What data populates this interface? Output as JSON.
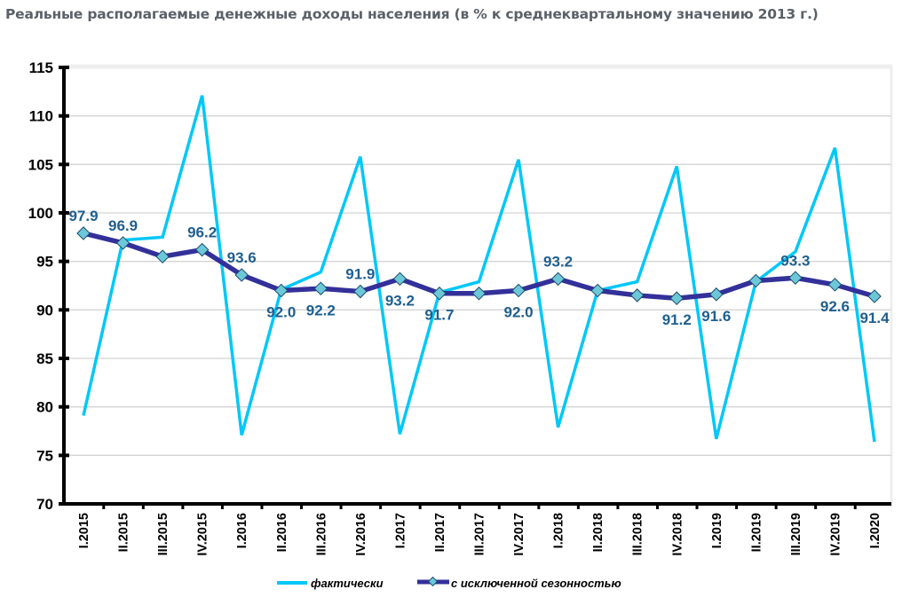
{
  "title": "Реальные располагаемые денежные доходы населения (в % к среднеквартальному значению 2013 г.)",
  "colors": {
    "actual": "#00c8f8",
    "adjusted": "#33309a",
    "marker_fill": "#6cc8d8",
    "marker_stroke": "#1c4a6a",
    "label": "#1f5f8f",
    "grid": "#d4d4d4",
    "title": "#5b6168"
  },
  "chart_data": {
    "type": "line",
    "title": "Реальные располагаемые денежные доходы населения (в % к среднеквартальному значению 2013 г.)",
    "xlabel": "",
    "ylabel": "",
    "ylim": [
      70,
      115
    ],
    "yticks": [
      70,
      75,
      80,
      85,
      90,
      95,
      100,
      105,
      110,
      115
    ],
    "grid": true,
    "legend_position": "bottom",
    "categories": [
      "I.2015",
      "II.2015",
      "III.2015",
      "IV.2015",
      "I.2016",
      "II.2016",
      "III.2016",
      "IV.2016",
      "I.2017",
      "II.2017",
      "III.2017",
      "IV.2017",
      "I.2018",
      "II.2018",
      "III.2018",
      "IV.2018",
      "I.2019",
      "II.2019",
      "III.2019",
      "IV.2019",
      "I.2020"
    ],
    "series": [
      {
        "name": "фактически",
        "values": [
          79.1,
          97.2,
          97.5,
          112.1,
          77.1,
          92.1,
          93.9,
          105.8,
          77.2,
          91.8,
          92.9,
          105.5,
          77.9,
          92.0,
          92.9,
          104.8,
          76.7,
          92.9,
          96.0,
          106.7,
          76.4
        ],
        "markers": false
      },
      {
        "name": "с исключенной сезонностью",
        "values": [
          97.9,
          96.9,
          95.5,
          96.2,
          93.6,
          92.0,
          92.2,
          91.9,
          93.2,
          91.7,
          91.7,
          92.0,
          93.2,
          92.0,
          91.5,
          91.2,
          91.6,
          93.0,
          93.3,
          92.6,
          91.4
        ],
        "markers": true,
        "data_labels": [
          {
            "index": 0,
            "text": "97.9",
            "pos": "above"
          },
          {
            "index": 1,
            "text": "96.9",
            "pos": "above"
          },
          {
            "index": 3,
            "text": "96.2",
            "pos": "above"
          },
          {
            "index": 4,
            "text": "93.6",
            "pos": "above"
          },
          {
            "index": 5,
            "text": "92.0",
            "pos": "below"
          },
          {
            "index": 6,
            "text": "92.2",
            "pos": "below"
          },
          {
            "index": 7,
            "text": "91.9",
            "pos": "above"
          },
          {
            "index": 8,
            "text": "93.2",
            "pos": "below"
          },
          {
            "index": 9,
            "text": "91.7",
            "pos": "below"
          },
          {
            "index": 11,
            "text": "92.0",
            "pos": "below"
          },
          {
            "index": 12,
            "text": "93.2",
            "pos": "above"
          },
          {
            "index": 15,
            "text": "91.2",
            "pos": "below"
          },
          {
            "index": 16,
            "text": "91.6",
            "pos": "below"
          },
          {
            "index": 18,
            "text": "93.3",
            "pos": "above"
          },
          {
            "index": 19,
            "text": "92.6",
            "pos": "below"
          },
          {
            "index": 20,
            "text": "91.4",
            "pos": "below"
          }
        ]
      }
    ]
  }
}
